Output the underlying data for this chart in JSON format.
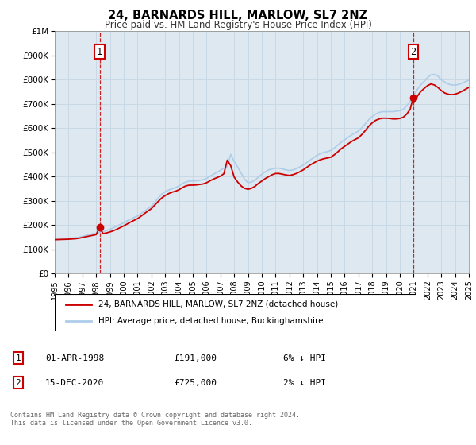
{
  "title": "24, BARNARDS HILL, MARLOW, SL7 2NZ",
  "subtitle": "Price paid vs. HM Land Registry's House Price Index (HPI)",
  "legend_line1": "24, BARNARDS HILL, MARLOW, SL7 2NZ (detached house)",
  "legend_line2": "HPI: Average price, detached house, Buckinghamshire",
  "footer": "Contains HM Land Registry data © Crown copyright and database right 2024.\nThis data is licensed under the Open Government Licence v3.0.",
  "annotation1": {
    "label": "1",
    "date": "01-APR-1998",
    "price": "£191,000",
    "note": "6% ↓ HPI",
    "year": 1998.25,
    "value": 191000
  },
  "annotation2": {
    "label": "2",
    "date": "15-DEC-2020",
    "price": "£725,000",
    "note": "2% ↓ HPI",
    "year": 2020.96,
    "value": 725000
  },
  "hpi_color": "#aecde8",
  "price_color": "#cc0000",
  "dashed_color": "#cc0000",
  "background_plot": "#dde8f0",
  "grid_color": "#c8d8e4",
  "ylim": [
    0,
    1000000
  ],
  "xlim_start": 1995,
  "xlim_end": 2025,
  "yticks": [
    0,
    100000,
    200000,
    300000,
    400000,
    500000,
    600000,
    700000,
    800000,
    900000,
    1000000
  ],
  "ytick_labels": [
    "£0",
    "£100K",
    "£200K",
    "£300K",
    "£400K",
    "£500K",
    "£600K",
    "£700K",
    "£800K",
    "£900K",
    "£1M"
  ],
  "xticks": [
    1995,
    1996,
    1997,
    1998,
    1999,
    2000,
    2001,
    2002,
    2003,
    2004,
    2005,
    2006,
    2007,
    2008,
    2009,
    2010,
    2011,
    2012,
    2013,
    2014,
    2015,
    2016,
    2017,
    2018,
    2019,
    2020,
    2021,
    2022,
    2023,
    2024,
    2025
  ],
  "hpi_data": [
    [
      1995.0,
      142000
    ],
    [
      1995.25,
      142500
    ],
    [
      1995.5,
      143000
    ],
    [
      1995.75,
      144000
    ],
    [
      1996.0,
      145000
    ],
    [
      1996.25,
      146500
    ],
    [
      1996.5,
      148000
    ],
    [
      1996.75,
      150000
    ],
    [
      1997.0,
      153000
    ],
    [
      1997.25,
      157000
    ],
    [
      1997.5,
      161000
    ],
    [
      1997.75,
      164000
    ],
    [
      1998.0,
      167000
    ],
    [
      1998.25,
      170000
    ],
    [
      1998.5,
      174000
    ],
    [
      1998.75,
      178000
    ],
    [
      1999.0,
      183000
    ],
    [
      1999.25,
      189000
    ],
    [
      1999.5,
      196000
    ],
    [
      1999.75,
      203000
    ],
    [
      2000.0,
      210000
    ],
    [
      2000.25,
      218000
    ],
    [
      2000.5,
      225000
    ],
    [
      2000.75,
      232000
    ],
    [
      2001.0,
      238000
    ],
    [
      2001.25,
      248000
    ],
    [
      2001.5,
      258000
    ],
    [
      2001.75,
      268000
    ],
    [
      2002.0,
      278000
    ],
    [
      2002.25,
      295000
    ],
    [
      2002.5,
      312000
    ],
    [
      2002.75,
      328000
    ],
    [
      2003.0,
      338000
    ],
    [
      2003.25,
      345000
    ],
    [
      2003.5,
      350000
    ],
    [
      2003.75,
      355000
    ],
    [
      2004.0,
      362000
    ],
    [
      2004.25,
      372000
    ],
    [
      2004.5,
      378000
    ],
    [
      2004.75,
      382000
    ],
    [
      2005.0,
      382000
    ],
    [
      2005.25,
      383000
    ],
    [
      2005.5,
      385000
    ],
    [
      2005.75,
      388000
    ],
    [
      2006.0,
      393000
    ],
    [
      2006.25,
      402000
    ],
    [
      2006.5,
      410000
    ],
    [
      2006.75,
      418000
    ],
    [
      2007.0,
      426000
    ],
    [
      2007.25,
      435000
    ],
    [
      2007.5,
      442000
    ],
    [
      2007.75,
      492000
    ],
    [
      2008.0,
      462000
    ],
    [
      2008.25,
      440000
    ],
    [
      2008.5,
      415000
    ],
    [
      2008.75,
      390000
    ],
    [
      2009.0,
      375000
    ],
    [
      2009.25,
      378000
    ],
    [
      2009.5,
      385000
    ],
    [
      2009.75,
      398000
    ],
    [
      2010.0,
      410000
    ],
    [
      2010.25,
      420000
    ],
    [
      2010.5,
      428000
    ],
    [
      2010.75,
      432000
    ],
    [
      2011.0,
      435000
    ],
    [
      2011.25,
      435000
    ],
    [
      2011.5,
      432000
    ],
    [
      2011.75,
      428000
    ],
    [
      2012.0,
      425000
    ],
    [
      2012.25,
      428000
    ],
    [
      2012.5,
      433000
    ],
    [
      2012.75,
      440000
    ],
    [
      2013.0,
      448000
    ],
    [
      2013.25,
      458000
    ],
    [
      2013.5,
      468000
    ],
    [
      2013.75,
      478000
    ],
    [
      2014.0,
      488000
    ],
    [
      2014.25,
      495000
    ],
    [
      2014.5,
      500000
    ],
    [
      2014.75,
      503000
    ],
    [
      2015.0,
      508000
    ],
    [
      2015.25,
      518000
    ],
    [
      2015.5,
      530000
    ],
    [
      2015.75,
      542000
    ],
    [
      2016.0,
      552000
    ],
    [
      2016.25,
      562000
    ],
    [
      2016.5,
      572000
    ],
    [
      2016.75,
      580000
    ],
    [
      2017.0,
      588000
    ],
    [
      2017.25,
      602000
    ],
    [
      2017.5,
      618000
    ],
    [
      2017.75,
      635000
    ],
    [
      2018.0,
      648000
    ],
    [
      2018.25,
      658000
    ],
    [
      2018.5,
      665000
    ],
    [
      2018.75,
      668000
    ],
    [
      2019.0,
      668000
    ],
    [
      2019.25,
      668000
    ],
    [
      2019.5,
      668000
    ],
    [
      2019.75,
      670000
    ],
    [
      2020.0,
      672000
    ],
    [
      2020.25,
      678000
    ],
    [
      2020.5,
      692000
    ],
    [
      2020.75,
      712000
    ],
    [
      2021.0,
      735000
    ],
    [
      2021.25,
      758000
    ],
    [
      2021.5,
      778000
    ],
    [
      2021.75,
      792000
    ],
    [
      2022.0,
      808000
    ],
    [
      2022.25,
      820000
    ],
    [
      2022.5,
      822000
    ],
    [
      2022.75,
      815000
    ],
    [
      2023.0,
      800000
    ],
    [
      2023.25,
      790000
    ],
    [
      2023.5,
      782000
    ],
    [
      2023.75,
      778000
    ],
    [
      2024.0,
      778000
    ],
    [
      2024.25,
      780000
    ],
    [
      2024.5,
      785000
    ],
    [
      2024.75,
      792000
    ],
    [
      2025.0,
      798000
    ]
  ],
  "price_data": [
    [
      1995.0,
      140000
    ],
    [
      1995.25,
      140500
    ],
    [
      1995.5,
      141000
    ],
    [
      1995.75,
      141500
    ],
    [
      1996.0,
      142000
    ],
    [
      1996.25,
      143000
    ],
    [
      1996.5,
      144000
    ],
    [
      1996.75,
      146000
    ],
    [
      1997.0,
      149000
    ],
    [
      1997.25,
      152000
    ],
    [
      1997.5,
      155000
    ],
    [
      1997.75,
      158000
    ],
    [
      1998.0,
      161000
    ],
    [
      1998.25,
      191000
    ],
    [
      1998.5,
      165000
    ],
    [
      1998.75,
      168000
    ],
    [
      1999.0,
      172000
    ],
    [
      1999.25,
      177000
    ],
    [
      1999.5,
      183000
    ],
    [
      1999.75,
      190000
    ],
    [
      2000.0,
      197000
    ],
    [
      2000.25,
      205000
    ],
    [
      2000.5,
      213000
    ],
    [
      2000.75,
      220000
    ],
    [
      2001.0,
      227000
    ],
    [
      2001.25,
      237000
    ],
    [
      2001.5,
      248000
    ],
    [
      2001.75,
      258000
    ],
    [
      2002.0,
      268000
    ],
    [
      2002.25,
      283000
    ],
    [
      2002.5,
      298000
    ],
    [
      2002.75,
      312000
    ],
    [
      2003.0,
      322000
    ],
    [
      2003.25,
      330000
    ],
    [
      2003.5,
      336000
    ],
    [
      2003.75,
      340000
    ],
    [
      2004.0,
      346000
    ],
    [
      2004.25,
      355000
    ],
    [
      2004.5,
      362000
    ],
    [
      2004.75,
      365000
    ],
    [
      2005.0,
      365000
    ],
    [
      2005.25,
      366000
    ],
    [
      2005.5,
      368000
    ],
    [
      2005.75,
      370000
    ],
    [
      2006.0,
      375000
    ],
    [
      2006.25,
      383000
    ],
    [
      2006.5,
      390000
    ],
    [
      2006.75,
      396000
    ],
    [
      2007.0,
      402000
    ],
    [
      2007.25,
      412000
    ],
    [
      2007.5,
      468000
    ],
    [
      2007.75,
      445000
    ],
    [
      2008.0,
      398000
    ],
    [
      2008.25,
      378000
    ],
    [
      2008.5,
      362000
    ],
    [
      2008.75,
      352000
    ],
    [
      2009.0,
      348000
    ],
    [
      2009.25,
      352000
    ],
    [
      2009.5,
      360000
    ],
    [
      2009.75,
      372000
    ],
    [
      2010.0,
      382000
    ],
    [
      2010.25,
      392000
    ],
    [
      2010.5,
      400000
    ],
    [
      2010.75,
      408000
    ],
    [
      2011.0,
      413000
    ],
    [
      2011.25,
      413000
    ],
    [
      2011.5,
      410000
    ],
    [
      2011.75,
      407000
    ],
    [
      2012.0,
      405000
    ],
    [
      2012.25,
      408000
    ],
    [
      2012.5,
      413000
    ],
    [
      2012.75,
      420000
    ],
    [
      2013.0,
      428000
    ],
    [
      2013.25,
      438000
    ],
    [
      2013.5,
      448000
    ],
    [
      2013.75,
      456000
    ],
    [
      2014.0,
      464000
    ],
    [
      2014.25,
      470000
    ],
    [
      2014.5,
      474000
    ],
    [
      2014.75,
      477000
    ],
    [
      2015.0,
      480000
    ],
    [
      2015.25,
      490000
    ],
    [
      2015.5,
      502000
    ],
    [
      2015.75,
      515000
    ],
    [
      2016.0,
      525000
    ],
    [
      2016.25,
      535000
    ],
    [
      2016.5,
      545000
    ],
    [
      2016.75,
      553000
    ],
    [
      2017.0,
      560000
    ],
    [
      2017.25,
      574000
    ],
    [
      2017.5,
      590000
    ],
    [
      2017.75,
      608000
    ],
    [
      2018.0,
      622000
    ],
    [
      2018.25,
      632000
    ],
    [
      2018.5,
      638000
    ],
    [
      2018.75,
      641000
    ],
    [
      2019.0,
      641000
    ],
    [
      2019.25,
      640000
    ],
    [
      2019.5,
      638000
    ],
    [
      2019.75,
      638000
    ],
    [
      2020.0,
      640000
    ],
    [
      2020.25,
      645000
    ],
    [
      2020.5,
      658000
    ],
    [
      2020.75,
      678000
    ],
    [
      2020.96,
      725000
    ],
    [
      2021.0,
      708000
    ],
    [
      2021.25,
      730000
    ],
    [
      2021.5,
      750000
    ],
    [
      2021.75,
      763000
    ],
    [
      2022.0,
      775000
    ],
    [
      2022.25,
      782000
    ],
    [
      2022.5,
      778000
    ],
    [
      2022.75,
      768000
    ],
    [
      2023.0,
      755000
    ],
    [
      2023.25,
      745000
    ],
    [
      2023.5,
      740000
    ],
    [
      2023.75,
      738000
    ],
    [
      2024.0,
      740000
    ],
    [
      2024.25,
      745000
    ],
    [
      2024.5,
      752000
    ],
    [
      2024.75,
      760000
    ],
    [
      2025.0,
      768000
    ]
  ]
}
